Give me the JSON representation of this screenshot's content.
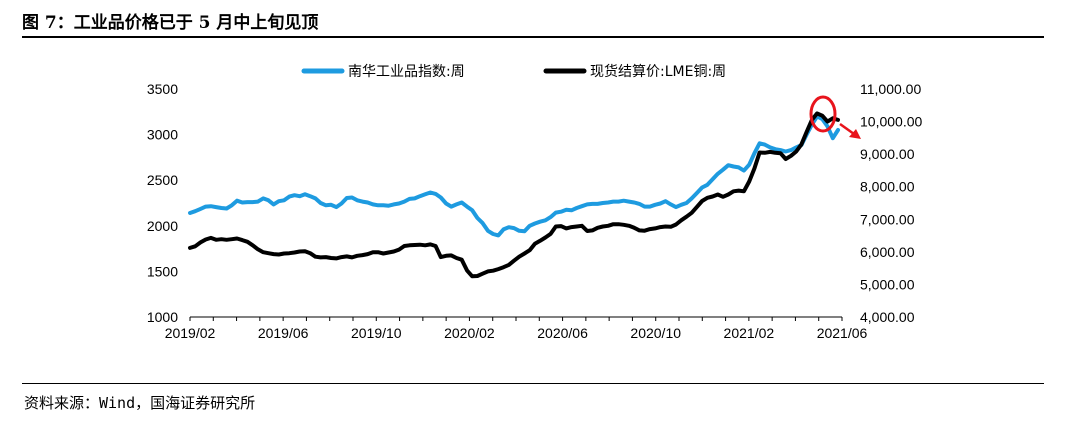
{
  "figure_title": "图 7：工业品价格已于 5 月中上旬见顶",
  "source": "资料来源：Wind，国海证券研究所",
  "colors": {
    "nanhua": "#1E9BE0",
    "lme": "#000000",
    "marker": "#E8141C"
  },
  "chart_data": {
    "type": "line",
    "x_ticks": [
      "2019/02",
      "2019/06",
      "2019/10",
      "2020/02",
      "2020/06",
      "2020/10",
      "2021/02",
      "2021/06"
    ],
    "y_left": {
      "ticks": [
        "3500",
        "3000",
        "2500",
        "2000",
        "1500",
        "1000"
      ],
      "range": [
        1000,
        3500
      ]
    },
    "y_right": {
      "ticks": [
        "11,000.00",
        "10,000.00",
        "9,000.00",
        "8,000.00",
        "7,000.00",
        "6,000.00",
        "5,000.00",
        "4,000.00"
      ],
      "range": [
        4000,
        11000
      ]
    },
    "series": [
      {
        "name": "南华工业品指数:周",
        "axis": "left",
        "color": "#1E9BE0",
        "values": [
          2140,
          2160,
          2185,
          2210,
          2215,
          2205,
          2195,
          2190,
          2225,
          2275,
          2255,
          2260,
          2260,
          2265,
          2300,
          2280,
          2235,
          2270,
          2280,
          2320,
          2335,
          2325,
          2345,
          2325,
          2300,
          2250,
          2225,
          2230,
          2205,
          2245,
          2305,
          2310,
          2280,
          2265,
          2255,
          2235,
          2225,
          2225,
          2220,
          2235,
          2245,
          2265,
          2295,
          2300,
          2325,
          2345,
          2365,
          2350,
          2310,
          2245,
          2210,
          2235,
          2255,
          2210,
          2170,
          2085,
          2030,
          1945,
          1910,
          1895,
          1960,
          1985,
          1975,
          1945,
          1940,
          2000,
          2025,
          2045,
          2060,
          2095,
          2145,
          2155,
          2175,
          2170,
          2195,
          2215,
          2235,
          2240,
          2240,
          2250,
          2255,
          2265,
          2265,
          2275,
          2265,
          2255,
          2240,
          2210,
          2210,
          2230,
          2245,
          2270,
          2235,
          2205,
          2230,
          2250,
          2300,
          2360,
          2420,
          2450,
          2510,
          2570,
          2615,
          2665,
          2650,
          2640,
          2605,
          2670,
          2795,
          2905,
          2890,
          2860,
          2840,
          2830,
          2815,
          2830,
          2860,
          2885,
          3000,
          3110,
          3200,
          3170,
          3090,
          2960,
          3050
        ]
      },
      {
        "name": "现货结算价:LME铜:周",
        "axis": "right",
        "color": "#000000",
        "values": [
          6120,
          6170,
          6290,
          6380,
          6430,
          6370,
          6390,
          6370,
          6390,
          6410,
          6360,
          6310,
          6200,
          6080,
          5990,
          5960,
          5930,
          5920,
          5950,
          5960,
          5980,
          6010,
          6020,
          5960,
          5850,
          5830,
          5840,
          5810,
          5800,
          5840,
          5860,
          5830,
          5880,
          5900,
          5930,
          5990,
          5990,
          5950,
          5980,
          6010,
          6070,
          6180,
          6200,
          6210,
          6220,
          6200,
          6230,
          6180,
          5840,
          5880,
          5890,
          5810,
          5760,
          5430,
          5250,
          5260,
          5330,
          5400,
          5420,
          5470,
          5530,
          5600,
          5730,
          5850,
          5950,
          6050,
          6250,
          6340,
          6440,
          6550,
          6780,
          6790,
          6720,
          6760,
          6780,
          6800,
          6640,
          6660,
          6740,
          6780,
          6800,
          6850,
          6850,
          6830,
          6800,
          6740,
          6660,
          6650,
          6700,
          6720,
          6760,
          6780,
          6770,
          6840,
          6970,
          7080,
          7200,
          7380,
          7560,
          7660,
          7700,
          7760,
          7690,
          7760,
          7860,
          7880,
          7860,
          8160,
          8560,
          9050,
          9040,
          9070,
          9040,
          9030,
          8850,
          8950,
          9080,
          9300,
          9680,
          10050,
          10250,
          10180,
          10000,
          10100,
          10050
        ]
      }
    ],
    "title": "",
    "xlabel": "",
    "ylabel": ""
  }
}
